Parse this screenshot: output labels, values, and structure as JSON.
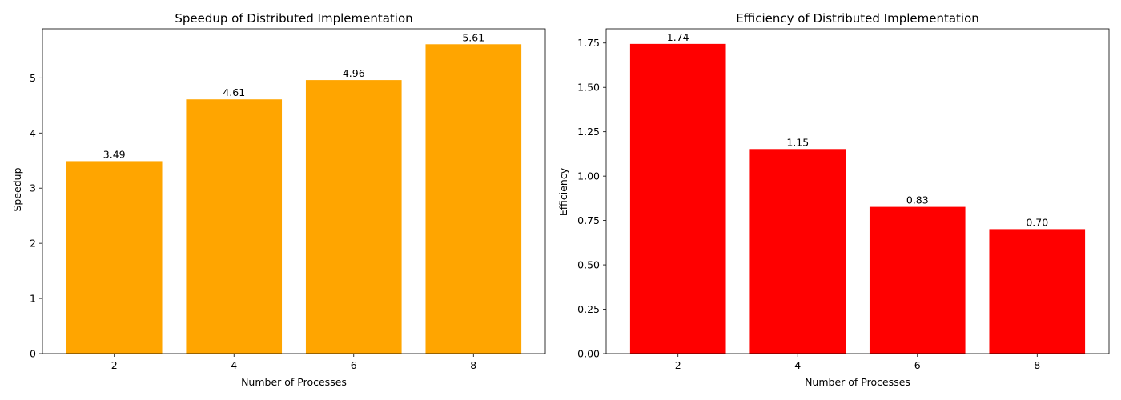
{
  "chart_data": [
    {
      "type": "bar",
      "title": "Speedup of Distributed Implementation",
      "xlabel": "Number of Processes",
      "ylabel": "Speedup",
      "categories": [
        "2",
        "4",
        "6",
        "8"
      ],
      "values": [
        3.49,
        4.61,
        4.96,
        5.61
      ],
      "value_labels": [
        "3.49",
        "4.61",
        "4.96",
        "5.61"
      ],
      "ylim": [
        0,
        5.89
      ],
      "yticks": [
        0,
        1,
        2,
        3,
        4,
        5
      ],
      "ytick_labels": [
        "0",
        "1",
        "2",
        "3",
        "4",
        "5"
      ],
      "bar_color": "#FFA500",
      "grid": false
    },
    {
      "type": "bar",
      "title": "Efficiency of Distributed Implementation",
      "xlabel": "Number of Processes",
      "ylabel": "Efficiency",
      "categories": [
        "2",
        "4",
        "6",
        "8"
      ],
      "values": [
        1.745,
        1.1525,
        0.8267,
        0.7013
      ],
      "value_labels": [
        "1.74",
        "1.15",
        "0.83",
        "0.70"
      ],
      "ylim": [
        0,
        1.83
      ],
      "yticks": [
        0,
        0.25,
        0.5,
        0.75,
        1.0,
        1.25,
        1.5,
        1.75
      ],
      "ytick_labels": [
        "0.00",
        "0.25",
        "0.50",
        "0.75",
        "1.00",
        "1.25",
        "1.50",
        "1.75"
      ],
      "bar_color": "#FF0000",
      "grid": false
    }
  ]
}
